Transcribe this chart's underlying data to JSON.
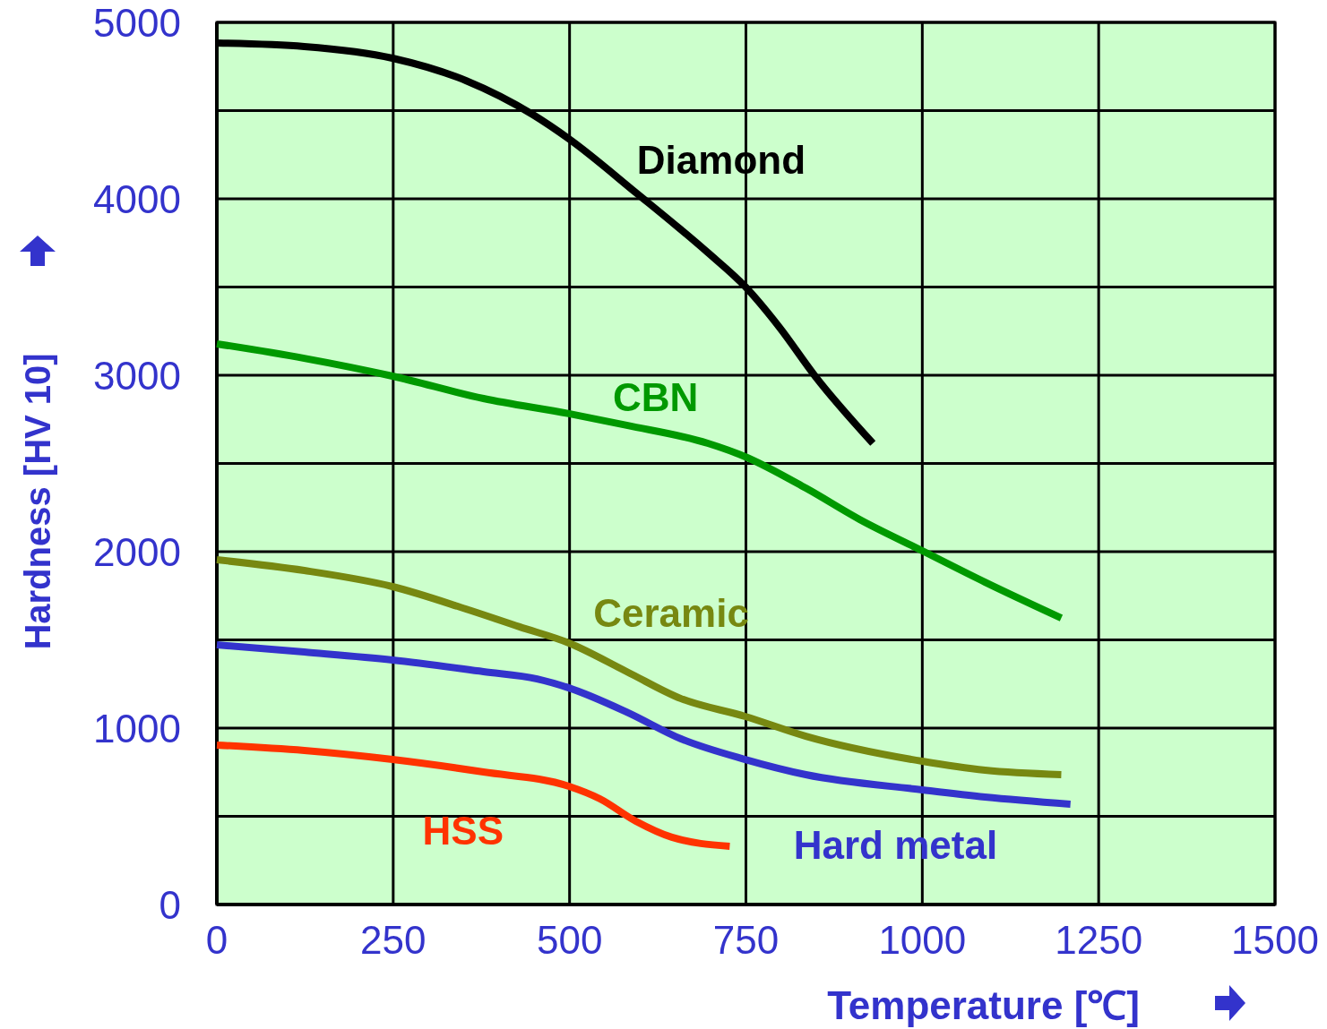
{
  "chart_data": {
    "type": "line",
    "xlabel": "Temperature [℃]",
    "ylabel": "Hardness [HV 10]",
    "xlim": [
      0,
      1500
    ],
    "ylim": [
      0,
      5000
    ],
    "xticks": [
      0,
      250,
      500,
      750,
      1000,
      1250,
      1500
    ],
    "yticks": [
      0,
      {
        "value": 500,
        "label": null
      },
      1000,
      {
        "value": 1500,
        "label": null
      },
      2000,
      {
        "value": 2500,
        "label": null
      },
      3000,
      {
        "value": 3500,
        "label": null
      },
      4000,
      {
        "value": 4500,
        "label": null
      },
      5000
    ],
    "grid": true,
    "line_style": "solid",
    "marker": "none",
    "series": [
      {
        "name": "Diamond",
        "color": "#000000",
        "x": [
          0,
          124,
          249,
          353,
          448,
          499,
          594,
          696,
          749,
          797,
          848,
          930
        ],
        "values": [
          4883,
          4863,
          4797,
          4670,
          4477,
          4340,
          4035,
          3695,
          3502,
          3274,
          2995,
          2614
        ]
      },
      {
        "name": "CBN",
        "color": "#009900",
        "x": [
          0,
          124,
          249,
          378,
          499,
          581,
          696,
          749,
          835,
          911,
          1000,
          1089,
          1197
        ],
        "values": [
          3178,
          3096,
          2995,
          2868,
          2782,
          2716,
          2614,
          2538,
          2360,
          2183,
          2005,
          1827,
          1624
        ]
      },
      {
        "name": "Ceramic",
        "color": "#778811",
        "x": [
          0,
          124,
          249,
          353,
          429,
          499,
          581,
          658,
          749,
          835,
          1000,
          1089,
          1197
        ],
        "values": [
          1954,
          1893,
          1802,
          1675,
          1574,
          1482,
          1320,
          1167,
          1066,
          954,
          812,
          761,
          736
        ]
      },
      {
        "name": "Hard metal",
        "color": "#3333cc",
        "x": [
          0,
          124,
          249,
          378,
          454,
          499,
          581,
          658,
          749,
          835,
          1000,
          1089,
          1210
        ],
        "values": [
          1472,
          1431,
          1386,
          1320,
          1279,
          1228,
          1091,
          939,
          822,
          736,
          650,
          609,
          569
        ]
      },
      {
        "name": "HSS",
        "color": "#ff3300",
        "x": [
          0,
          124,
          249,
          378,
          499,
          543,
          594,
          645,
          727
        ],
        "values": [
          904,
          873,
          822,
          751,
          670,
          599,
          472,
          381,
          330
        ]
      }
    ]
  }
}
